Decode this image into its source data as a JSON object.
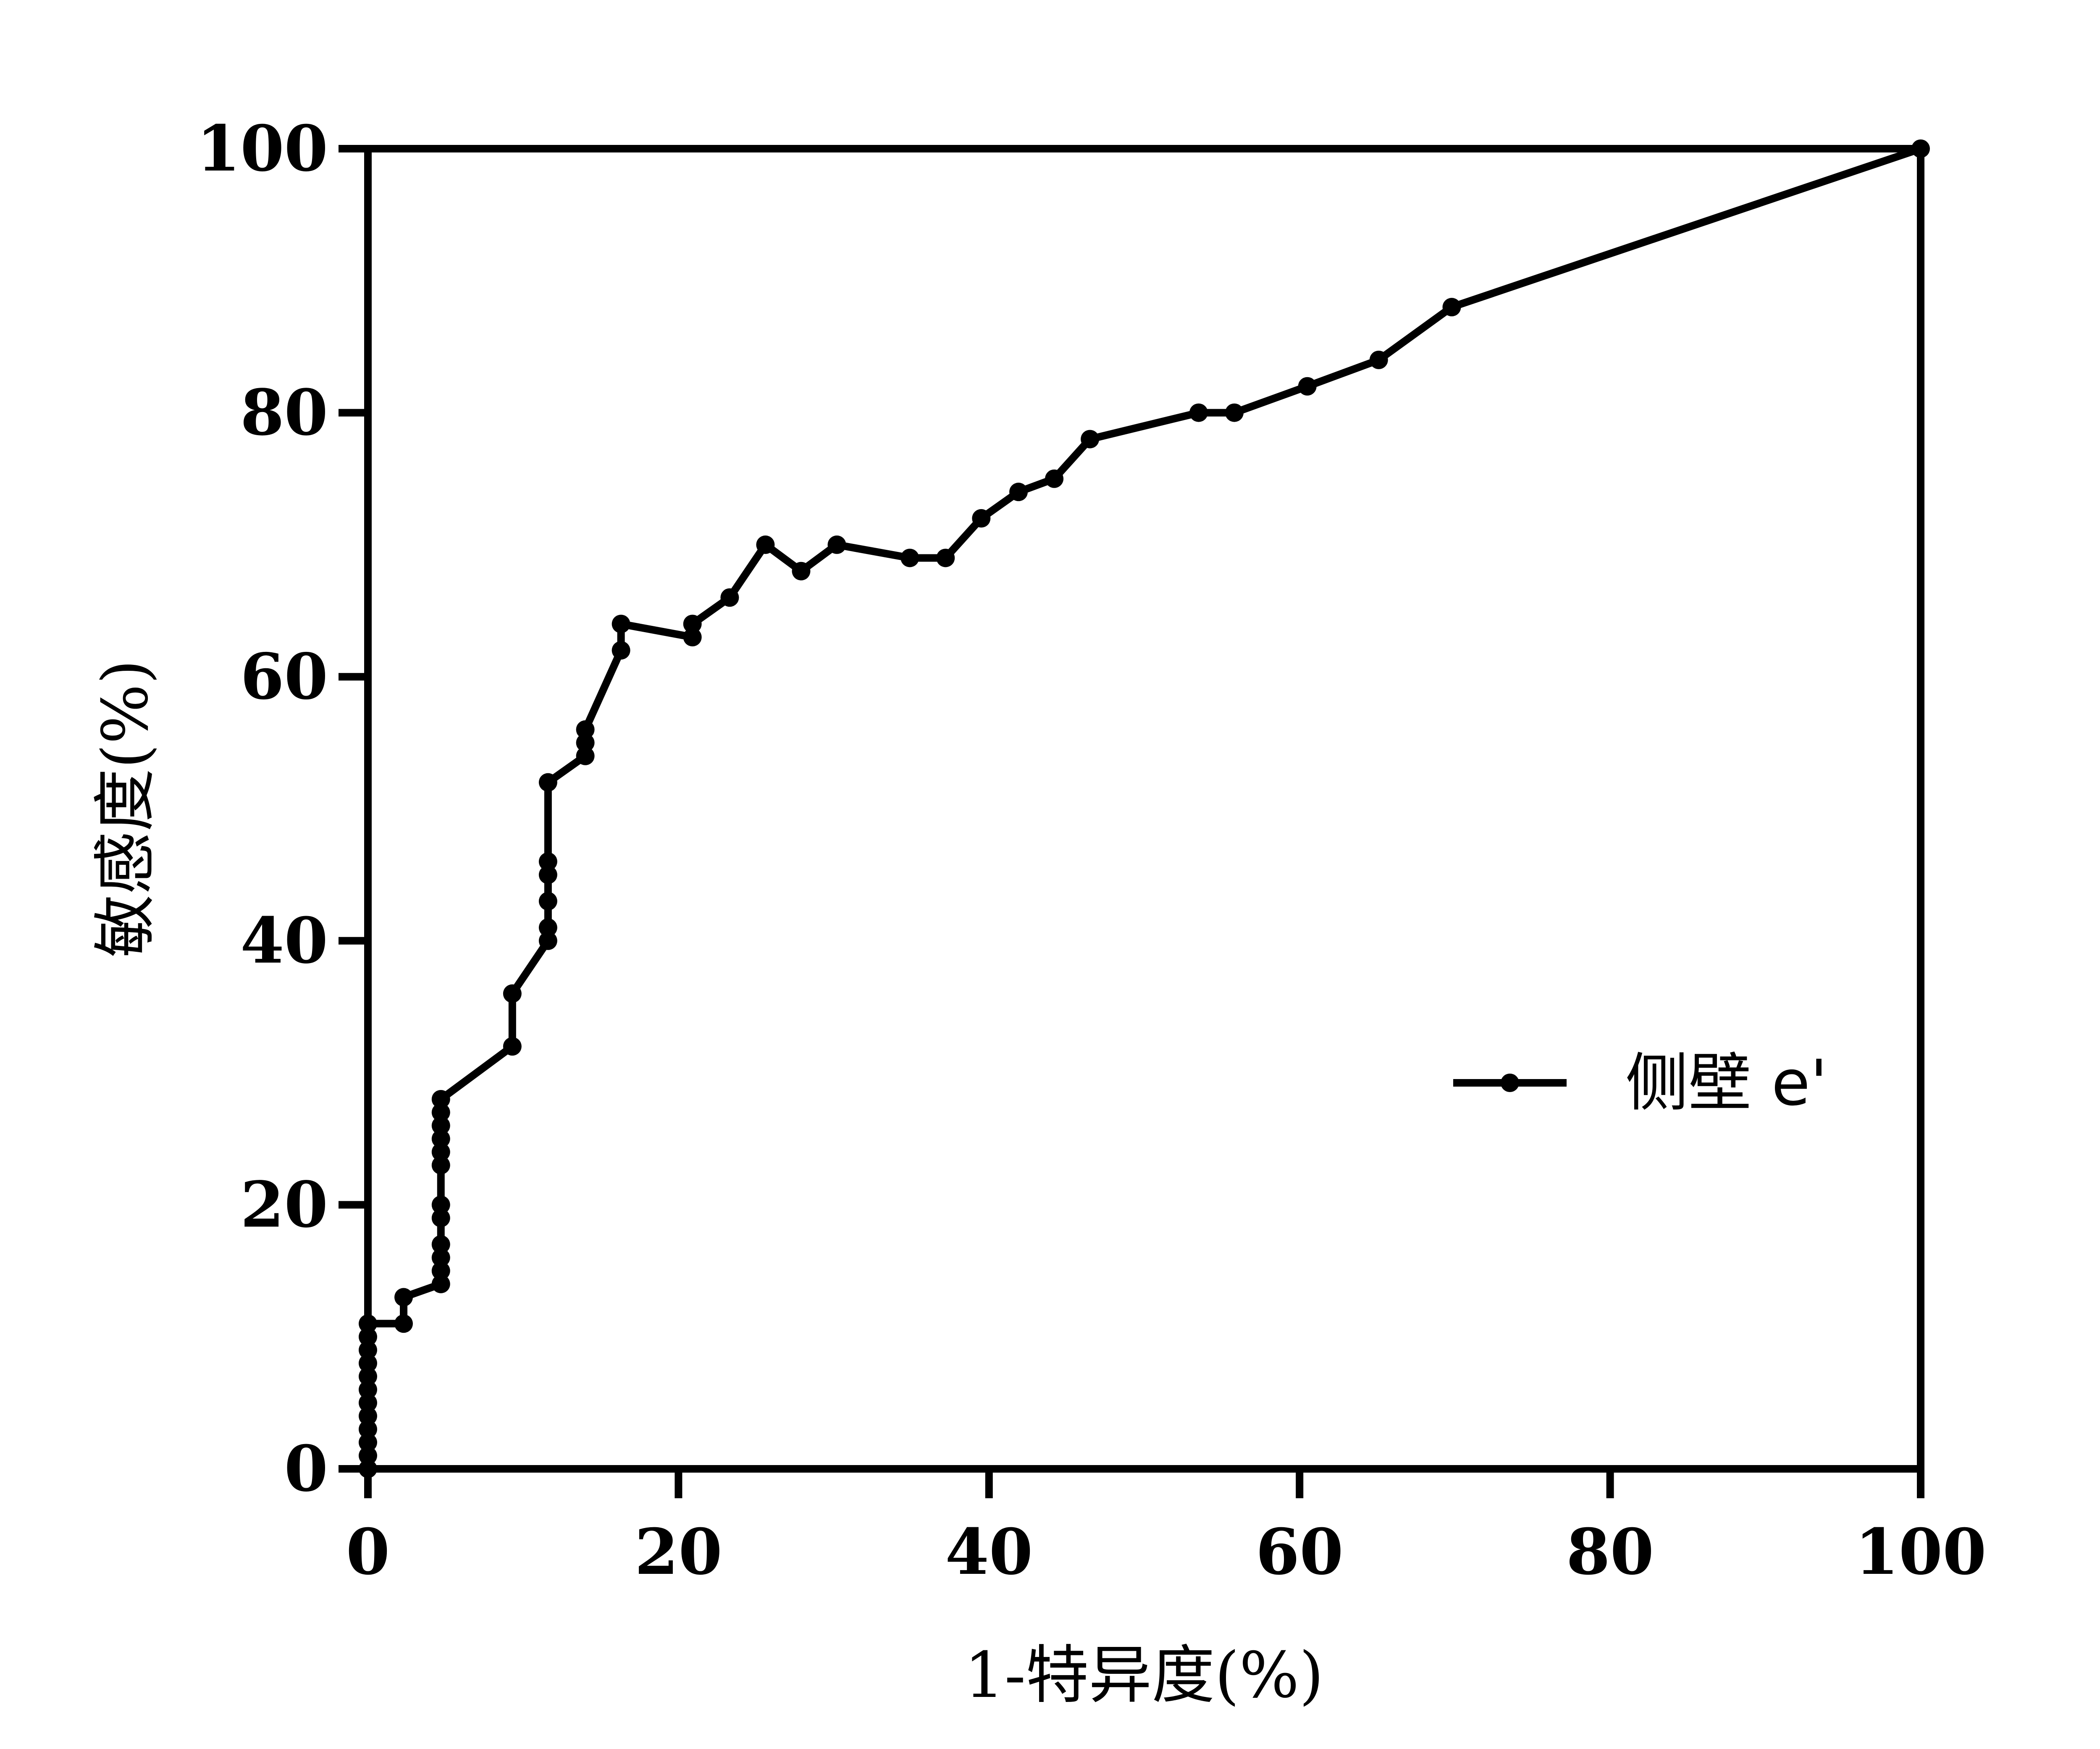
{
  "chart_data": {
    "type": "line",
    "title": "",
    "xlabel": "1-特异度(%)",
    "ylabel": "敏感度(%)",
    "xlim": [
      0,
      100
    ],
    "ylim": [
      0,
      100
    ],
    "xticks": [
      0,
      20,
      40,
      60,
      80,
      100
    ],
    "yticks": [
      0,
      20,
      40,
      60,
      80,
      100
    ],
    "grid": false,
    "legend": {
      "position": "right-middle",
      "entries": [
        "侧壁 e'"
      ]
    },
    "colors": {
      "line": "#000000",
      "axes": "#000000",
      "background": "#ffffff"
    },
    "series": [
      {
        "name": "侧壁 e'",
        "marker": "circle",
        "x": [
          0,
          0,
          0,
          0,
          0,
          0,
          0,
          0,
          0,
          0,
          0,
          0,
          2.3,
          2.3,
          4.7,
          4.7,
          4.7,
          4.7,
          4.7,
          4.7,
          4.7,
          4.7,
          4.7,
          4.7,
          4.7,
          4.7,
          9.3,
          9.3,
          11.6,
          11.6,
          11.6,
          11.6,
          11.6,
          11.6,
          14.0,
          14.0,
          14.0,
          16.3,
          16.3,
          20.9,
          20.9,
          23.3,
          25.6,
          27.9,
          30.2,
          34.9,
          37.2,
          39.5,
          41.9,
          44.2,
          46.5,
          53.5,
          55.8,
          60.5,
          65.1,
          69.8,
          100
        ],
        "y": [
          0,
          1,
          2,
          3,
          4,
          5,
          6,
          7,
          8,
          9,
          10,
          11,
          11,
          13,
          14,
          15,
          16,
          17,
          19,
          20,
          23,
          24,
          25,
          26,
          27,
          28,
          32,
          36,
          40,
          41,
          43,
          45,
          46,
          52,
          54,
          55,
          56,
          62,
          64,
          63,
          64,
          66,
          70,
          68,
          70,
          69,
          69,
          72,
          74,
          75,
          78,
          80,
          80,
          82,
          84,
          88,
          100
        ]
      }
    ]
  }
}
